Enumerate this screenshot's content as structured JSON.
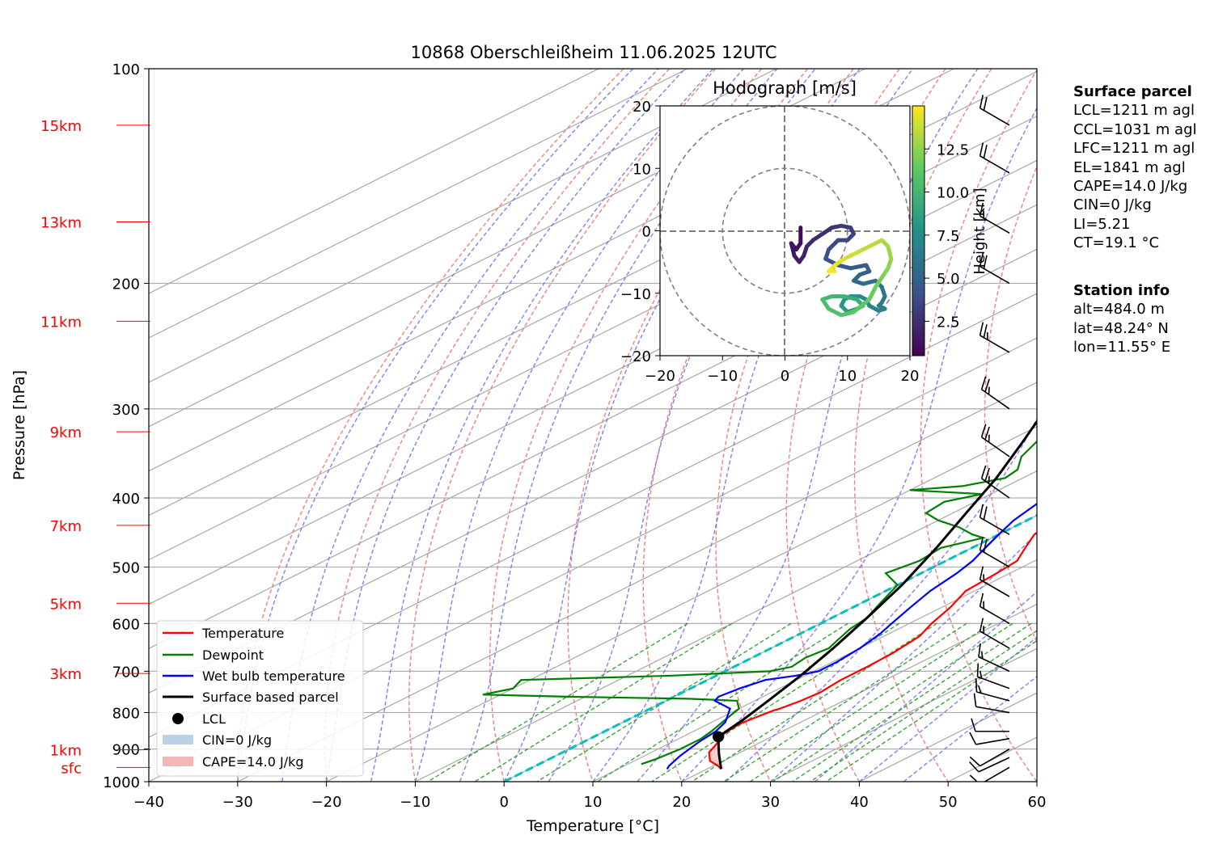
{
  "title": "10868 Oberschleißheim 11.06.2025 12UTC",
  "axes": {
    "xlabel": "Temperature [°C]",
    "ylabel": "Pressure [hPa]",
    "x_ticks": [
      "−40",
      "−30",
      "−20",
      "−10",
      "0",
      "10",
      "20",
      "30",
      "40",
      "50",
      "60"
    ],
    "p_ticks": [
      "100",
      "200",
      "300",
      "400",
      "500",
      "600",
      "700",
      "800",
      "900",
      "1000"
    ]
  },
  "height_labels": [
    "15km",
    "13km",
    "11km",
    "9km",
    "7km",
    "5km",
    "3km",
    "1km",
    "sfc"
  ],
  "legend": {
    "temperature": "Temperature",
    "dewpoint": "Dewpoint",
    "wetbulb": "Wet bulb temperature",
    "parcel": "Surface based parcel",
    "lcl": "LCL",
    "cin": "CIN=0 J/kg",
    "cape": "CAPE=14.0 J/kg"
  },
  "hodograph": {
    "title": "Hodograph [m/s]",
    "ticks": [
      "−20",
      "−10",
      "0",
      "10",
      "20"
    ],
    "colorbar_label": "Height [km]",
    "colorbar_ticks": [
      "2.5",
      "5.0",
      "7.5",
      "10.0",
      "12.5"
    ]
  },
  "surface_parcel": {
    "heading": "Surface parcel",
    "lines": [
      "LCL=1211 m agl",
      "CCL=1031 m agl",
      "LFC=1211 m agl",
      "EL=1841 m agl",
      "CAPE=14.0 J/kg",
      "CIN=0 J/kg",
      "LI=5.21",
      "CT=19.1 °C"
    ]
  },
  "station_info": {
    "heading": "Station info",
    "lines": [
      "alt=484.0 m",
      "lat=48.24° N",
      "lon=11.55° E"
    ]
  },
  "colors": {
    "temperature": "#ff0000",
    "dewpoint": "#008000",
    "wetbulb": "#0000ff",
    "parcel": "#000000",
    "height_labels": "#ff0000",
    "cape_fill": "#f4b6b6",
    "cin_fill": "#b9d1e6",
    "isotherm_0": "#00c0c0"
  },
  "chart_data": {
    "type": "line",
    "skew_t": true,
    "xlim": [
      -40,
      60
    ],
    "plim": [
      1000,
      100
    ],
    "series": [
      {
        "name": "Temperature",
        "points": [
          [
            21.6,
            960
          ],
          [
            20.5,
            950
          ],
          [
            18.5,
            935
          ],
          [
            16.5,
            910
          ],
          [
            15.2,
            880
          ],
          [
            14.0,
            860
          ],
          [
            13.5,
            830
          ],
          [
            13.8,
            815
          ],
          [
            14.3,
            795
          ],
          [
            14.6,
            790
          ],
          [
            15.2,
            770
          ],
          [
            15.5,
            750
          ],
          [
            15.0,
            720
          ],
          [
            15.0,
            690
          ],
          [
            14.8,
            660
          ],
          [
            14.0,
            625
          ],
          [
            12.5,
            600
          ],
          [
            11.0,
            570
          ],
          [
            9.0,
            540
          ],
          [
            8.5,
            510
          ],
          [
            8.0,
            490
          ],
          [
            6.0,
            470
          ],
          [
            4.0,
            450
          ],
          [
            3.0,
            430
          ],
          [
            1.5,
            410
          ],
          [
            0.5,
            390
          ],
          [
            -1.0,
            370
          ],
          [
            -3.5,
            345
          ],
          [
            -6.0,
            320
          ],
          [
            -9.0,
            300
          ],
          [
            -13.0,
            280
          ],
          [
            -17.5,
            260
          ],
          [
            -22.0,
            240
          ],
          [
            -27.0,
            220
          ],
          [
            -32.0,
            200
          ],
          [
            -38.5,
            185
          ],
          [
            -44.5,
            178
          ],
          [
            -50.0,
            170
          ],
          [
            -55.0,
            165
          ],
          [
            -57.0,
            160
          ],
          [
            -58.0,
            150
          ],
          [
            -59.0,
            140
          ],
          [
            -59.5,
            135
          ],
          [
            -59.0,
            128
          ],
          [
            -58.5,
            120
          ],
          [
            -57.0,
            116
          ],
          [
            -56.5,
            112
          ],
          [
            -55.0,
            108
          ]
        ]
      },
      {
        "name": "Dewpoint",
        "points": [
          [
            11.5,
            945
          ],
          [
            12.0,
            930
          ],
          [
            12.5,
            900
          ],
          [
            12.5,
            870
          ],
          [
            12.0,
            850
          ],
          [
            11.0,
            820
          ],
          [
            10.0,
            790
          ],
          [
            8.0,
            770
          ],
          [
            2.0,
            765
          ],
          [
            -12.0,
            760
          ],
          [
            -22.0,
            755
          ],
          [
            -20.0,
            740
          ],
          [
            -21.0,
            720
          ],
          [
            -5.0,
            710
          ],
          [
            5.0,
            700
          ],
          [
            6.5,
            690
          ],
          [
            6.0,
            670
          ],
          [
            6.5,
            650
          ],
          [
            5.5,
            630
          ],
          [
            4.5,
            610
          ],
          [
            4.0,
            590
          ],
          [
            2.0,
            560
          ],
          [
            0.0,
            530
          ],
          [
            -4.0,
            510
          ],
          [
            -3.0,
            490
          ],
          [
            -3.5,
            470
          ],
          [
            -1.0,
            455
          ],
          [
            -3.0,
            450
          ],
          [
            -6.0,
            440
          ],
          [
            -10.0,
            430
          ],
          [
            -13.0,
            420
          ],
          [
            -13.5,
            405
          ],
          [
            -11.0,
            395
          ],
          [
            -20.0,
            390
          ],
          [
            -15.0,
            385
          ],
          [
            -12.0,
            375
          ],
          [
            -12.5,
            365
          ],
          [
            -15.0,
            350
          ],
          [
            -17.0,
            330
          ],
          [
            -19.0,
            315
          ],
          [
            -21.0,
            300
          ],
          [
            -23.0,
            285
          ],
          [
            -25.0,
            270
          ],
          [
            -27.0,
            255
          ],
          [
            -29.5,
            245
          ],
          [
            -32.5,
            230
          ],
          [
            -36.0,
            215
          ],
          [
            -39.0,
            205
          ],
          [
            -42.0,
            195
          ],
          [
            -45.0,
            185
          ],
          [
            -47.0,
            178
          ],
          [
            -47.5,
            172
          ],
          [
            -49.0,
            165
          ],
          [
            -51.0,
            160
          ],
          [
            -52.0,
            150
          ],
          [
            -56.0,
            142
          ],
          [
            -62.0,
            135
          ],
          [
            -67.0,
            128
          ],
          [
            -69.0,
            125
          ],
          [
            -71.0,
            120
          ],
          [
            -72.0,
            115
          ],
          [
            -74.0,
            112
          ]
        ]
      },
      {
        "name": "Wet bulb temperature",
        "points": [
          [
            15.5,
            960
          ],
          [
            15.0,
            950
          ],
          [
            14.0,
            920
          ],
          [
            13.0,
            880
          ],
          [
            12.5,
            850
          ],
          [
            11.5,
            825
          ],
          [
            9.0,
            790
          ],
          [
            5.5,
            770
          ],
          [
            5.0,
            760
          ],
          [
            5.5,
            740
          ],
          [
            6.5,
            720
          ],
          [
            9.0,
            710
          ],
          [
            10.5,
            700
          ],
          [
            10.5,
            680
          ],
          [
            10.0,
            650
          ],
          [
            9.0,
            620
          ],
          [
            8.0,
            600
          ],
          [
            6.5,
            570
          ],
          [
            5.0,
            540
          ],
          [
            4.0,
            510
          ],
          [
            3.0,
            490
          ],
          [
            1.5,
            470
          ],
          [
            0.0,
            450
          ],
          [
            -1.5,
            430
          ],
          [
            -2.5,
            410
          ],
          [
            -3.5,
            390
          ],
          [
            -5.5,
            370
          ],
          [
            -8.0,
            345
          ],
          [
            -10.5,
            320
          ],
          [
            -13.5,
            300
          ],
          [
            -17.0,
            280
          ],
          [
            -21.5,
            260
          ],
          [
            -26.0,
            240
          ],
          [
            -30.5,
            220
          ],
          [
            -35.5,
            200
          ],
          [
            -41.0,
            187
          ],
          [
            -46.0,
            180
          ],
          [
            -51.0,
            173
          ],
          [
            -55.5,
            166
          ],
          [
            -57.5,
            160
          ],
          [
            -58.5,
            150
          ],
          [
            -59.5,
            140
          ],
          [
            -59.5,
            132
          ],
          [
            -59.0,
            125
          ],
          [
            -58.0,
            120
          ],
          [
            -57.0,
            116
          ],
          [
            -56.5,
            112
          ],
          [
            -55.0,
            108
          ]
        ]
      },
      {
        "name": "Surface based parcel",
        "points": [
          [
            21.6,
            960
          ],
          [
            18.0,
            915
          ],
          [
            14.0,
            865
          ],
          [
            13.0,
            820
          ],
          [
            11.5,
            770
          ],
          [
            9.5,
            710
          ],
          [
            7.0,
            650
          ],
          [
            4.0,
            590
          ],
          [
            0.5,
            530
          ],
          [
            -4.0,
            470
          ],
          [
            -8.5,
            420
          ],
          [
            -13.0,
            375
          ],
          [
            -18.0,
            335
          ],
          [
            -23.0,
            300
          ],
          [
            -29.0,
            265
          ],
          [
            -36.0,
            230
          ],
          [
            -44.0,
            200
          ],
          [
            -52.0,
            175
          ],
          [
            -60.0,
            155
          ],
          [
            -68.0,
            138
          ],
          [
            -76.0,
            125
          ],
          [
            -83.0,
            114
          ]
        ]
      }
    ],
    "lcl": [
      14.0,
      865
    ],
    "wind_barbs": [
      {
        "p": 955,
        "dir": 240,
        "spd": 10
      },
      {
        "p": 925,
        "dir": 245,
        "spd": 12
      },
      {
        "p": 900,
        "dir": 240,
        "spd": 12
      },
      {
        "p": 870,
        "dir": 260,
        "spd": 13
      },
      {
        "p": 850,
        "dir": 270,
        "spd": 14
      },
      {
        "p": 800,
        "dir": 280,
        "spd": 14
      },
      {
        "p": 770,
        "dir": 285,
        "spd": 15
      },
      {
        "p": 740,
        "dir": 290,
        "spd": 17
      },
      {
        "p": 700,
        "dir": 295,
        "spd": 18
      },
      {
        "p": 650,
        "dir": 300,
        "spd": 18
      },
      {
        "p": 600,
        "dir": 300,
        "spd": 18
      },
      {
        "p": 550,
        "dir": 300,
        "spd": 18
      },
      {
        "p": 500,
        "dir": 300,
        "spd": 20
      },
      {
        "p": 450,
        "dir": 300,
        "spd": 22
      },
      {
        "p": 400,
        "dir": 305,
        "spd": 25
      },
      {
        "p": 350,
        "dir": 305,
        "spd": 28
      },
      {
        "p": 300,
        "dir": 305,
        "spd": 28
      },
      {
        "p": 250,
        "dir": 300,
        "spd": 25
      },
      {
        "p": 200,
        "dir": 300,
        "spd": 22
      },
      {
        "p": 170,
        "dir": 300,
        "spd": 18
      },
      {
        "p": 140,
        "dir": 300,
        "spd": 20
      },
      {
        "p": 120,
        "dir": 300,
        "spd": 20
      }
    ],
    "hodograph": {
      "xlim": [
        -20,
        20
      ],
      "ylim": [
        -20,
        20
      ],
      "rings": [
        10,
        20
      ],
      "cmin": 0.5,
      "cmax": 15,
      "trace": [
        [
          2.5,
          0.5,
          0.5
        ],
        [
          2.5,
          -2.0,
          0.8
        ],
        [
          1.8,
          -3.0,
          1.0
        ],
        [
          1.0,
          -2.0,
          1.2
        ],
        [
          1.5,
          -4.0,
          1.4
        ],
        [
          2.3,
          -5.0,
          1.6
        ],
        [
          3.0,
          -4.0,
          1.8
        ],
        [
          3.5,
          -2.5,
          2.0
        ],
        [
          4.5,
          -1.5,
          2.2
        ],
        [
          6.0,
          -0.5,
          2.4
        ],
        [
          7.5,
          0.5,
          2.6
        ],
        [
          9.0,
          0.8,
          2.8
        ],
        [
          10.5,
          0.5,
          3.0
        ],
        [
          11.0,
          -0.5,
          3.2
        ],
        [
          10.0,
          -1.5,
          3.4
        ],
        [
          8.5,
          -1.5,
          3.6
        ],
        [
          7.0,
          -3.0,
          3.8
        ],
        [
          6.5,
          -4.5,
          4.0
        ],
        [
          8.5,
          -5.5,
          4.2
        ],
        [
          10.5,
          -6.0,
          4.4
        ],
        [
          13.0,
          -5.5,
          4.6
        ],
        [
          13.5,
          -6.5,
          4.8
        ],
        [
          12.0,
          -7.0,
          5.0
        ],
        [
          11.0,
          -8.0,
          5.2
        ],
        [
          12.5,
          -8.5,
          5.4
        ],
        [
          14.5,
          -8.0,
          5.6
        ],
        [
          15.5,
          -9.0,
          5.8
        ],
        [
          16.0,
          -10.5,
          6.0
        ],
        [
          15.5,
          -11.5,
          6.2
        ],
        [
          15.0,
          -12.0,
          6.4
        ],
        [
          16.0,
          -12.5,
          6.6
        ],
        [
          15.0,
          -12.8,
          6.8
        ],
        [
          13.5,
          -12.0,
          7.0
        ],
        [
          13.0,
          -11.0,
          7.2
        ],
        [
          12.0,
          -10.5,
          7.4
        ],
        [
          10.5,
          -10.5,
          7.6
        ],
        [
          9.5,
          -11.0,
          7.8
        ],
        [
          9.0,
          -12.0,
          8.0
        ],
        [
          10.0,
          -13.0,
          8.3
        ],
        [
          11.5,
          -12.5,
          8.6
        ],
        [
          12.5,
          -12.0,
          8.9
        ],
        [
          11.5,
          -11.0,
          9.2
        ],
        [
          9.5,
          -10.5,
          9.5
        ],
        [
          7.5,
          -10.5,
          9.8
        ],
        [
          6.0,
          -11.0,
          10.1
        ],
        [
          7.0,
          -12.5,
          10.4
        ],
        [
          9.0,
          -13.5,
          10.7
        ],
        [
          11.0,
          -13.0,
          11.0
        ],
        [
          13.5,
          -11.0,
          11.3
        ],
        [
          14.5,
          -9.0,
          11.6
        ],
        [
          15.5,
          -7.5,
          11.9
        ],
        [
          16.5,
          -6.0,
          12.2
        ],
        [
          17.0,
          -4.5,
          12.5
        ],
        [
          16.5,
          -2.5,
          12.8
        ],
        [
          15.5,
          -1.5,
          13.1
        ],
        [
          13.5,
          -2.5,
          13.4
        ],
        [
          11.5,
          -3.5,
          13.7
        ],
        [
          9.5,
          -4.5,
          14.0
        ],
        [
          8.0,
          -5.5,
          14.3
        ],
        [
          7.0,
          -6.5,
          14.6
        ],
        [
          8.0,
          -6.5,
          14.9
        ]
      ]
    }
  }
}
